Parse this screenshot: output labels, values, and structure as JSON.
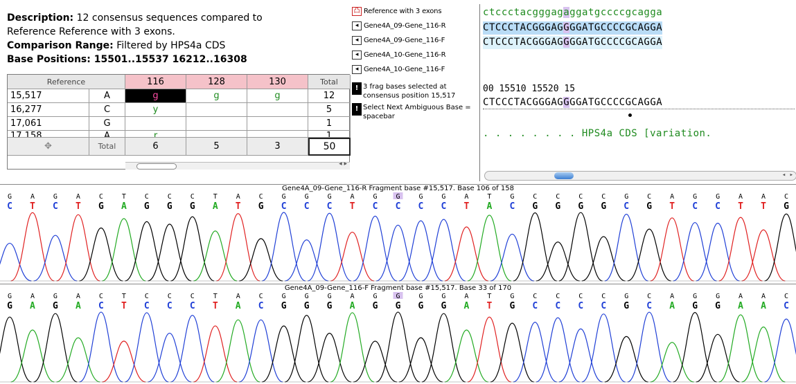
{
  "description": {
    "label": "Description:",
    "text": " 12 consensus sequences compared to",
    "text2": "Reference Reference with 3 exons.",
    "range_label": "Comparison Range:",
    "range_value": " Filtered by HPS4a CDS",
    "positions_label": "Base Positions:",
    "positions_value": " 15501..15537 16212..16308"
  },
  "comparison_table": {
    "headers": [
      "Reference",
      "116",
      "128",
      "130",
      "Total"
    ],
    "rows": [
      {
        "pos": "15,517",
        "base": "A",
        "c116": "g",
        "c128": "g",
        "c130": "g",
        "total": "12"
      },
      {
        "pos": "16,277",
        "base": "C",
        "c116": "y",
        "c128": "",
        "c130": "",
        "total": "5"
      },
      {
        "pos": "17,061",
        "base": "G",
        "c116": "",
        "c128": "",
        "c130": "",
        "total": "1"
      },
      {
        "pos": "17,158",
        "base": "A",
        "c116": "r",
        "c128": "",
        "c130": "",
        "total": "1"
      }
    ],
    "footer": {
      "label": "Total",
      "c116": "6",
      "c128": "5",
      "c130": "3",
      "total": "50"
    }
  },
  "fragments": [
    {
      "name": "Reference with 3 exons",
      "icon": "reference-icon"
    },
    {
      "name": "Gene4A_09-Gene_116-R",
      "icon": "fragment-reverse-icon"
    },
    {
      "name": "Gene4A_09-Gene_116-F",
      "icon": "fragment-forward-icon"
    },
    {
      "name": "Gene4A_10-Gene_116-R",
      "icon": "fragment-reverse-icon"
    },
    {
      "name": "Gene4A_10-Gene_116-F",
      "icon": "fragment-forward-icon"
    }
  ],
  "info": {
    "selected": "3 frag bases selected at consensus position 15,517",
    "hint": "Select Next Ambiguous Base = spacebar"
  },
  "sequences": {
    "reference": "ctccctacgggagaggatgccccgcagga",
    "frag1": "CTCCCTACGGGAGGGGATGCCCCGCAGGA",
    "frag2": "CTCCCTACGGGAGGGGATGCCCCGCAGGA",
    "ruler": "00     15510      15520      15",
    "consensus": "CTCCCTACGGGAGGGGATGCCCCGCAGGA",
    "feature": ". . . . . . . . HPS4a  CDS  [variation."
  },
  "traces": [
    {
      "title": "Gene4A_09-Gene_116-R Fragment base #15,517. Base 106 of 158",
      "calls": [
        "G",
        "A",
        "G",
        "A",
        "C",
        "T",
        "C",
        "C",
        "C",
        "T",
        "A",
        "C",
        "G",
        "G",
        "G",
        "A",
        "G",
        "G",
        "G",
        "G",
        "A",
        "T",
        "G",
        "C",
        "C",
        "C",
        "C",
        "G",
        "C",
        "A",
        "G",
        "G",
        "A",
        "A",
        "C"
      ],
      "revcalls": [
        "C",
        "T",
        "C",
        "T",
        "G",
        "A",
        "G",
        "G",
        "G",
        "A",
        "T",
        "G",
        "C",
        "C",
        "C",
        "T",
        "C",
        "C",
        "C",
        "C",
        "T",
        "A",
        "C",
        "G",
        "G",
        "G",
        "G",
        "C",
        "G",
        "T",
        "C",
        "C",
        "T",
        "T",
        "G"
      ]
    },
    {
      "title": "Gene4A_09-Gene_116-F Fragment base #15,517. Base 33 of 170",
      "calls": [
        "G",
        "A",
        "G",
        "A",
        "C",
        "T",
        "C",
        "C",
        "C",
        "T",
        "A",
        "C",
        "G",
        "G",
        "G",
        "A",
        "G",
        "G",
        "G",
        "G",
        "A",
        "T",
        "G",
        "C",
        "C",
        "C",
        "C",
        "G",
        "C",
        "A",
        "G",
        "G",
        "A",
        "A",
        "C"
      ],
      "revcalls": [
        "G",
        "A",
        "G",
        "A",
        "C",
        "T",
        "C",
        "C",
        "C",
        "T",
        "A",
        "C",
        "G",
        "G",
        "G",
        "A",
        "G",
        "G",
        "G",
        "G",
        "A",
        "T",
        "G",
        "C",
        "C",
        "C",
        "C",
        "G",
        "C",
        "A",
        "G",
        "G",
        "A",
        "A",
        "C"
      ]
    }
  ],
  "colors": {
    "A": "#22aa22",
    "C": "#1f3fd6",
    "G": "#000000",
    "T": "#e02020",
    "pink_header": "#f5c2c9",
    "select_lilac": "#d8c2ef"
  }
}
